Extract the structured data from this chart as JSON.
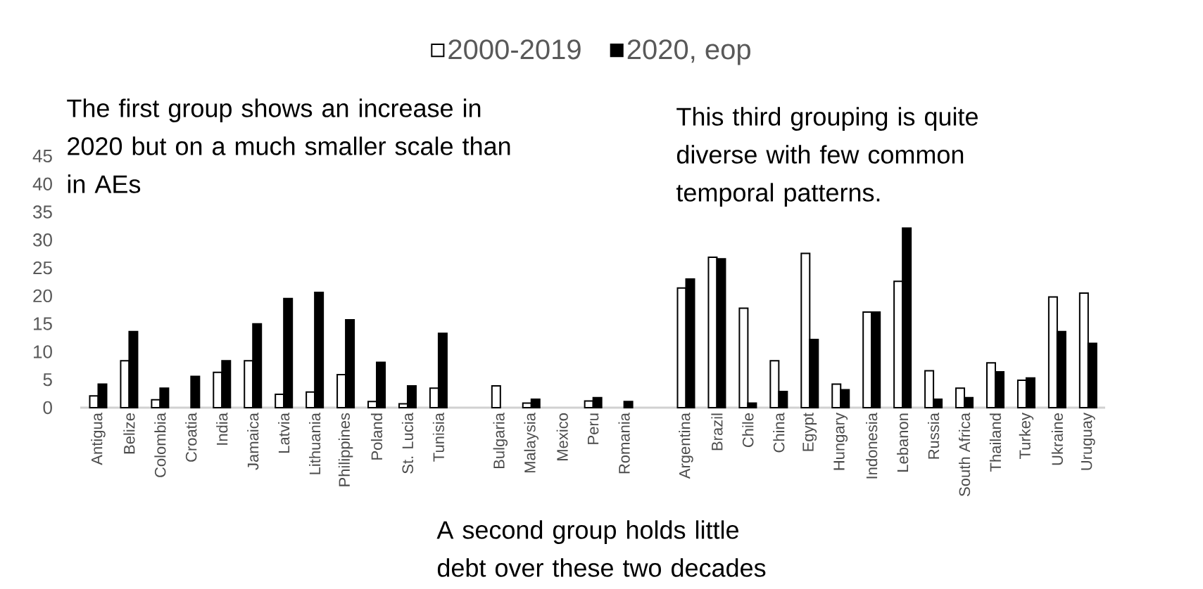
{
  "chart_data": {
    "type": "bar",
    "categories": [
      "Antigua",
      "Belize",
      "Colombia",
      "Croatia",
      "India",
      "Jamaica",
      "Latvia",
      "Lithuania",
      "Philippines",
      "Poland",
      "St. Lucia",
      "Tunisia",
      null,
      "Bulgaria",
      "Malaysia",
      "Mexico",
      "Peru",
      "Romania",
      null,
      "Argentina",
      "Brazil",
      "Chile",
      "China",
      "Egypt",
      "Hungary",
      "Indonesia",
      "Lebanon",
      "Russia",
      "South Africa",
      "Thailand",
      "Turkey",
      "Ukraine",
      "Uruguay"
    ],
    "series": [
      {
        "name": "2000-2019",
        "color": "#ffffff",
        "values": [
          2.1,
          8.4,
          1.4,
          null,
          6.3,
          8.4,
          2.4,
          2.8,
          5.9,
          1.1,
          0.7,
          3.5,
          null,
          3.9,
          0.8,
          null,
          1.2,
          null,
          null,
          21.4,
          26.9,
          17.8,
          8.4,
          27.6,
          4.2,
          17.1,
          22.6,
          6.6,
          3.5,
          8.0,
          4.9,
          19.8,
          20.5
        ]
      },
      {
        "name": "2020, eop",
        "color": "#000000",
        "values": [
          4.2,
          13.6,
          3.5,
          5.6,
          8.4,
          15.0,
          19.5,
          20.6,
          15.7,
          8.1,
          3.9,
          13.3,
          null,
          null,
          1.5,
          null,
          1.8,
          1.1,
          null,
          23.0,
          26.6,
          0.8,
          2.9,
          12.2,
          3.2,
          17.1,
          32.1,
          1.5,
          1.8,
          6.4,
          5.3,
          13.6,
          11.5
        ]
      }
    ],
    "ylim": [
      0,
      45
    ],
    "yticks": [
      0,
      5,
      10,
      15,
      20,
      25,
      30,
      35,
      40,
      45
    ],
    "grid": false,
    "legend": "top",
    "annotations": [
      "The first group shows an increase in 2020 but on a much smaller scale than in AEs",
      "A second group holds little debt over these two decades",
      "This third grouping is quite diverse with few common temporal patterns."
    ]
  }
}
